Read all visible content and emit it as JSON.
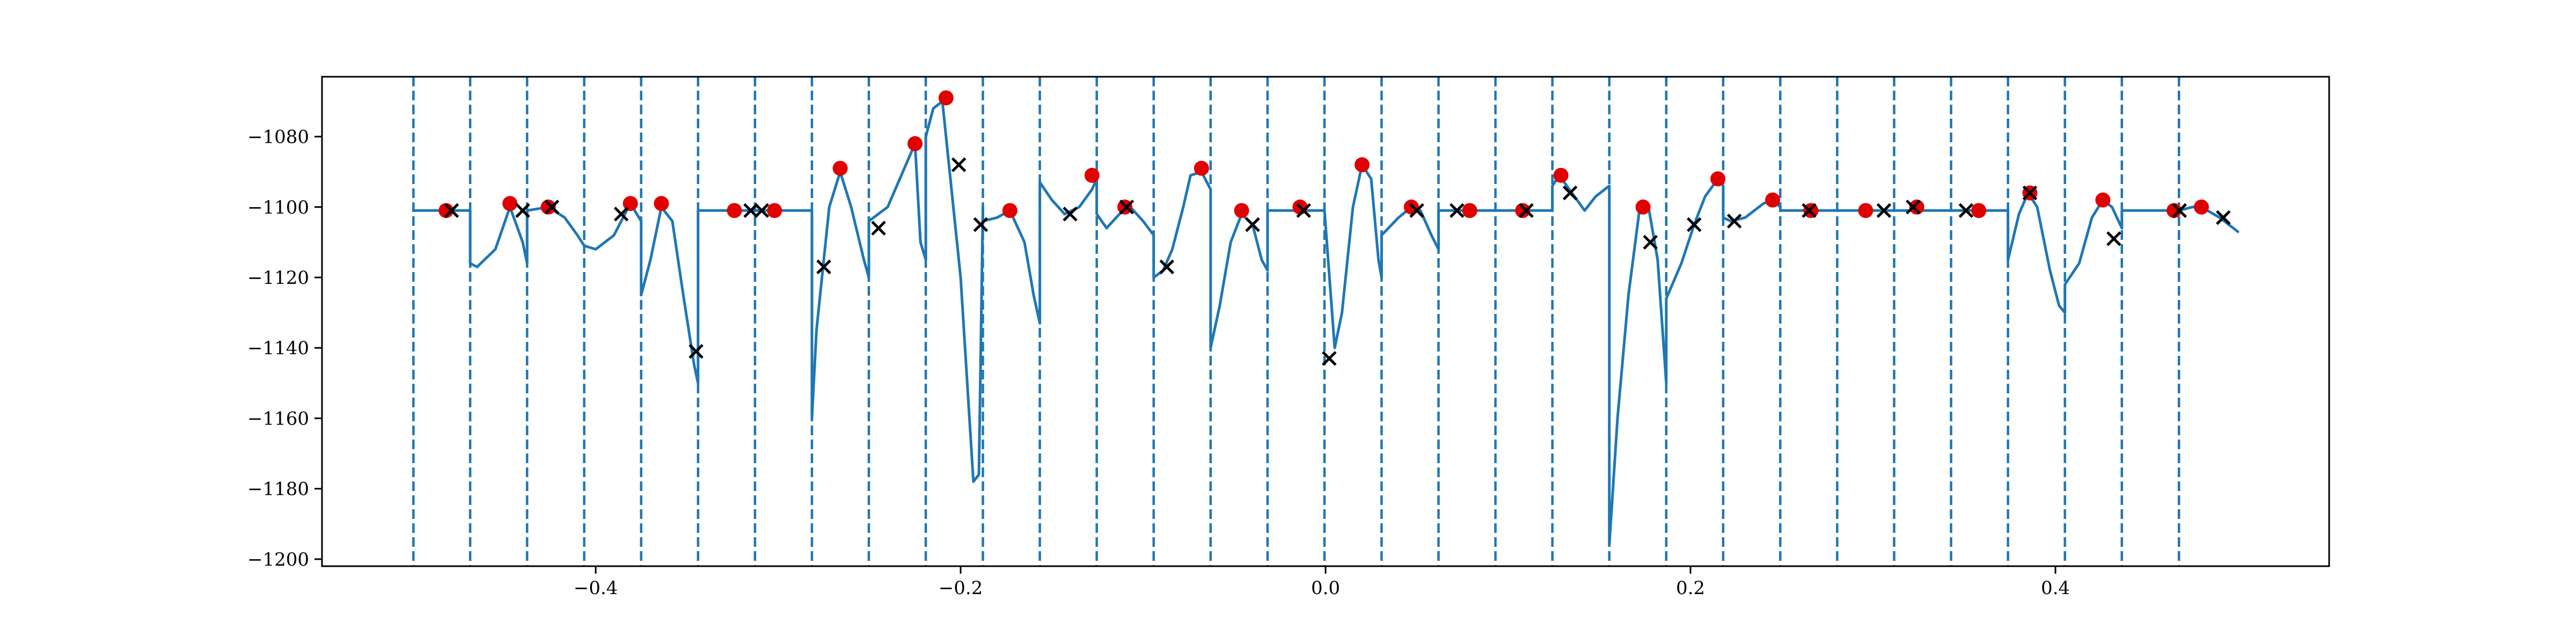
{
  "chart_data": {
    "type": "line",
    "title": "",
    "xlabel": "",
    "ylabel": "",
    "xlim": [
      -0.55,
      0.55
    ],
    "ylim": [
      -1202,
      -1063
    ],
    "grid": false,
    "x_ticks": [
      -0.4,
      -0.2,
      0.0,
      0.2,
      0.4
    ],
    "x_tick_labels": [
      "−0.4",
      "−0.2",
      "0.0",
      "0.2",
      "0.4"
    ],
    "y_ticks": [
      -1200,
      -1180,
      -1160,
      -1140,
      -1120,
      -1100,
      -1080
    ],
    "y_tick_labels": [
      "−1200",
      "−1180",
      "−1160",
      "−1140",
      "−1120",
      "−1100",
      "−1080"
    ],
    "colors": {
      "line": "#1f77b4",
      "red_marker": "#e00000",
      "x_marker": "#000000"
    },
    "boundaries": [
      -0.4999,
      -0.4688,
      -0.4376,
      -0.4063,
      -0.3751,
      -0.3439,
      -0.3127,
      -0.2815,
      -0.2503,
      -0.2191,
      -0.1878,
      -0.1566,
      -0.1254,
      -0.0942,
      -0.063,
      -0.0318,
      -0.0006,
      0.0307,
      0.0619,
      0.0931,
      0.1243,
      0.1555,
      0.1867,
      0.2179,
      0.2492,
      0.2804,
      0.3116,
      0.3428,
      0.374,
      0.4052,
      0.4364,
      0.4677
    ],
    "series": [
      {
        "style": "line",
        "points": [
          [
            -0.4999,
            -1101
          ],
          [
            -0.485,
            -1101
          ],
          [
            -0.4688,
            -1101
          ],
          [
            -0.4688,
            -1116
          ],
          [
            -0.465,
            -1117
          ],
          [
            -0.455,
            -1112
          ],
          [
            -0.447,
            -1100
          ],
          [
            -0.44,
            -1110
          ],
          [
            -0.4376,
            -1116
          ],
          [
            -0.4376,
            -1101
          ],
          [
            -0.426,
            -1100
          ],
          [
            -0.417,
            -1103
          ],
          [
            -0.41,
            -1108
          ],
          [
            -0.4063,
            -1111
          ],
          [
            -0.4,
            -1112
          ],
          [
            -0.39,
            -1108
          ],
          [
            -0.381,
            -1099
          ],
          [
            -0.3751,
            -1104
          ],
          [
            -0.3751,
            -1125
          ],
          [
            -0.37,
            -1115
          ],
          [
            -0.364,
            -1100
          ],
          [
            -0.358,
            -1104
          ],
          [
            -0.352,
            -1125
          ],
          [
            -0.346,
            -1145
          ],
          [
            -0.3439,
            -1150
          ],
          [
            -0.3439,
            -1101
          ],
          [
            -0.3127,
            -1101
          ],
          [
            -0.3127,
            -1101
          ],
          [
            -0.2815,
            -1101
          ],
          [
            -0.2815,
            -1160
          ],
          [
            -0.279,
            -1135
          ],
          [
            -0.272,
            -1100
          ],
          [
            -0.266,
            -1090
          ],
          [
            -0.26,
            -1100
          ],
          [
            -0.253,
            -1115
          ],
          [
            -0.2503,
            -1120
          ],
          [
            -0.2503,
            -1104
          ],
          [
            -0.24,
            -1100
          ],
          [
            -0.23,
            -1088
          ],
          [
            -0.225,
            -1082
          ],
          [
            -0.222,
            -1110
          ],
          [
            -0.2191,
            -1115
          ],
          [
            -0.2191,
            -1080
          ],
          [
            -0.215,
            -1072
          ],
          [
            -0.21,
            -1070
          ],
          [
            -0.2,
            -1120
          ],
          [
            -0.193,
            -1178
          ],
          [
            -0.19,
            -1176
          ],
          [
            -0.1878,
            -1100
          ],
          [
            -0.1878,
            -1104
          ],
          [
            -0.18,
            -1103
          ],
          [
            -0.173,
            -1101
          ],
          [
            -0.165,
            -1110
          ],
          [
            -0.16,
            -1125
          ],
          [
            -0.1566,
            -1133
          ],
          [
            -0.1566,
            -1093
          ],
          [
            -0.15,
            -1098
          ],
          [
            -0.143,
            -1102
          ],
          [
            -0.135,
            -1100
          ],
          [
            -0.128,
            -1095
          ],
          [
            -0.1254,
            -1092
          ],
          [
            -0.1254,
            -1102
          ],
          [
            -0.12,
            -1106
          ],
          [
            -0.113,
            -1102
          ],
          [
            -0.107,
            -1100
          ],
          [
            -0.1,
            -1104
          ],
          [
            -0.0942,
            -1108
          ],
          [
            -0.0942,
            -1120
          ],
          [
            -0.089,
            -1118
          ],
          [
            -0.084,
            -1112
          ],
          [
            -0.078,
            -1100
          ],
          [
            -0.074,
            -1091
          ],
          [
            -0.068,
            -1090
          ],
          [
            -0.063,
            -1095
          ],
          [
            -0.063,
            -1140
          ],
          [
            -0.058,
            -1128
          ],
          [
            -0.052,
            -1110
          ],
          [
            -0.046,
            -1102
          ],
          [
            -0.04,
            -1105
          ],
          [
            -0.035,
            -1115
          ],
          [
            -0.0318,
            -1118
          ],
          [
            -0.0318,
            -1101
          ],
          [
            -0.015,
            -1101
          ],
          [
            -0.0006,
            -1101
          ],
          [
            -0.0006,
            -1101
          ],
          [
            0.005,
            -1140
          ],
          [
            0.009,
            -1130
          ],
          [
            0.015,
            -1100
          ],
          [
            0.02,
            -1088
          ],
          [
            0.025,
            -1092
          ],
          [
            0.029,
            -1115
          ],
          [
            0.0307,
            -1120
          ],
          [
            0.0307,
            -1108
          ],
          [
            0.04,
            -1103
          ],
          [
            0.047,
            -1100
          ],
          [
            0.052,
            -1101
          ],
          [
            0.058,
            -1108
          ],
          [
            0.0619,
            -1112
          ],
          [
            0.0619,
            -1101
          ],
          [
            0.0931,
            -1101
          ],
          [
            0.0931,
            -1101
          ],
          [
            0.1243,
            -1101
          ],
          [
            0.1243,
            -1094
          ],
          [
            0.128,
            -1091
          ],
          [
            0.135,
            -1096
          ],
          [
            0.142,
            -1101
          ],
          [
            0.148,
            -1097
          ],
          [
            0.1555,
            -1094
          ],
          [
            0.1555,
            -1196
          ],
          [
            0.16,
            -1160
          ],
          [
            0.166,
            -1125
          ],
          [
            0.172,
            -1101
          ],
          [
            0.177,
            -1100
          ],
          [
            0.182,
            -1115
          ],
          [
            0.1867,
            -1150
          ],
          [
            0.1867,
            -1126
          ],
          [
            0.195,
            -1116
          ],
          [
            0.202,
            -1105
          ],
          [
            0.208,
            -1097
          ],
          [
            0.215,
            -1092
          ],
          [
            0.2179,
            -1094
          ],
          [
            0.2179,
            -1103
          ],
          [
            0.222,
            -1104
          ],
          [
            0.23,
            -1103
          ],
          [
            0.24,
            -1099
          ],
          [
            0.245,
            -1098
          ],
          [
            0.2492,
            -1100
          ],
          [
            0.2492,
            -1101
          ],
          [
            0.2804,
            -1101
          ],
          [
            0.2804,
            -1101
          ],
          [
            0.3116,
            -1101
          ],
          [
            0.3116,
            -1101
          ],
          [
            0.3428,
            -1101
          ],
          [
            0.3428,
            -1101
          ],
          [
            0.374,
            -1101
          ],
          [
            0.374,
            -1115
          ],
          [
            0.38,
            -1102
          ],
          [
            0.385,
            -1096
          ],
          [
            0.39,
            -1100
          ],
          [
            0.397,
            -1118
          ],
          [
            0.402,
            -1128
          ],
          [
            0.4052,
            -1130
          ],
          [
            0.4052,
            -1122
          ],
          [
            0.413,
            -1116
          ],
          [
            0.42,
            -1103
          ],
          [
            0.426,
            -1098
          ],
          [
            0.431,
            -1100
          ],
          [
            0.4364,
            -1106
          ],
          [
            0.4364,
            -1101
          ],
          [
            0.4677,
            -1101
          ],
          [
            0.4677,
            -1101
          ],
          [
            0.475,
            -1100
          ],
          [
            0.48,
            -1100
          ],
          [
            0.49,
            -1103
          ],
          [
            0.5,
            -1107
          ]
        ]
      },
      {
        "style": "red_marker",
        "points": [
          [
            -0.482,
            -1101
          ],
          [
            -0.447,
            -1099
          ],
          [
            -0.426,
            -1100
          ],
          [
            -0.381,
            -1099
          ],
          [
            -0.364,
            -1099
          ],
          [
            -0.324,
            -1101
          ],
          [
            -0.302,
            -1101
          ],
          [
            -0.266,
            -1089
          ],
          [
            -0.225,
            -1082
          ],
          [
            -0.208,
            -1069
          ],
          [
            -0.173,
            -1101
          ],
          [
            -0.128,
            -1091
          ],
          [
            -0.11,
            -1100
          ],
          [
            -0.068,
            -1089
          ],
          [
            -0.046,
            -1101
          ],
          [
            -0.014,
            -1100
          ],
          [
            0.02,
            -1088
          ],
          [
            0.047,
            -1100
          ],
          [
            0.079,
            -1101
          ],
          [
            0.108,
            -1101
          ],
          [
            0.129,
            -1091
          ],
          [
            0.174,
            -1100
          ],
          [
            0.215,
            -1092
          ],
          [
            0.245,
            -1098
          ],
          [
            0.266,
            -1101
          ],
          [
            0.296,
            -1101
          ],
          [
            0.324,
            -1100
          ],
          [
            0.358,
            -1101
          ],
          [
            0.386,
            -1096
          ],
          [
            0.426,
            -1098
          ],
          [
            0.465,
            -1101
          ],
          [
            0.48,
            -1100
          ]
        ]
      },
      {
        "style": "x_marker",
        "points": [
          [
            -0.479,
            -1101
          ],
          [
            -0.44,
            -1101
          ],
          [
            -0.424,
            -1100
          ],
          [
            -0.386,
            -1102
          ],
          [
            -0.345,
            -1141
          ],
          [
            -0.315,
            -1101
          ],
          [
            -0.309,
            -1101
          ],
          [
            -0.275,
            -1117
          ],
          [
            -0.245,
            -1106
          ],
          [
            -0.201,
            -1088
          ],
          [
            -0.189,
            -1105
          ],
          [
            -0.14,
            -1102
          ],
          [
            -0.109,
            -1100
          ],
          [
            -0.087,
            -1117
          ],
          [
            -0.04,
            -1105
          ],
          [
            -0.012,
            -1101
          ],
          [
            0.002,
            -1143
          ],
          [
            0.05,
            -1101
          ],
          [
            0.072,
            -1101
          ],
          [
            0.11,
            -1101
          ],
          [
            0.134,
            -1096
          ],
          [
            0.178,
            -1110
          ],
          [
            0.202,
            -1105
          ],
          [
            0.224,
            -1104
          ],
          [
            0.265,
            -1101
          ],
          [
            0.306,
            -1101
          ],
          [
            0.322,
            -1100
          ],
          [
            0.351,
            -1101
          ],
          [
            0.386,
            -1096
          ],
          [
            0.432,
            -1109
          ],
          [
            0.468,
            -1101
          ],
          [
            0.492,
            -1103
          ]
        ]
      }
    ]
  }
}
